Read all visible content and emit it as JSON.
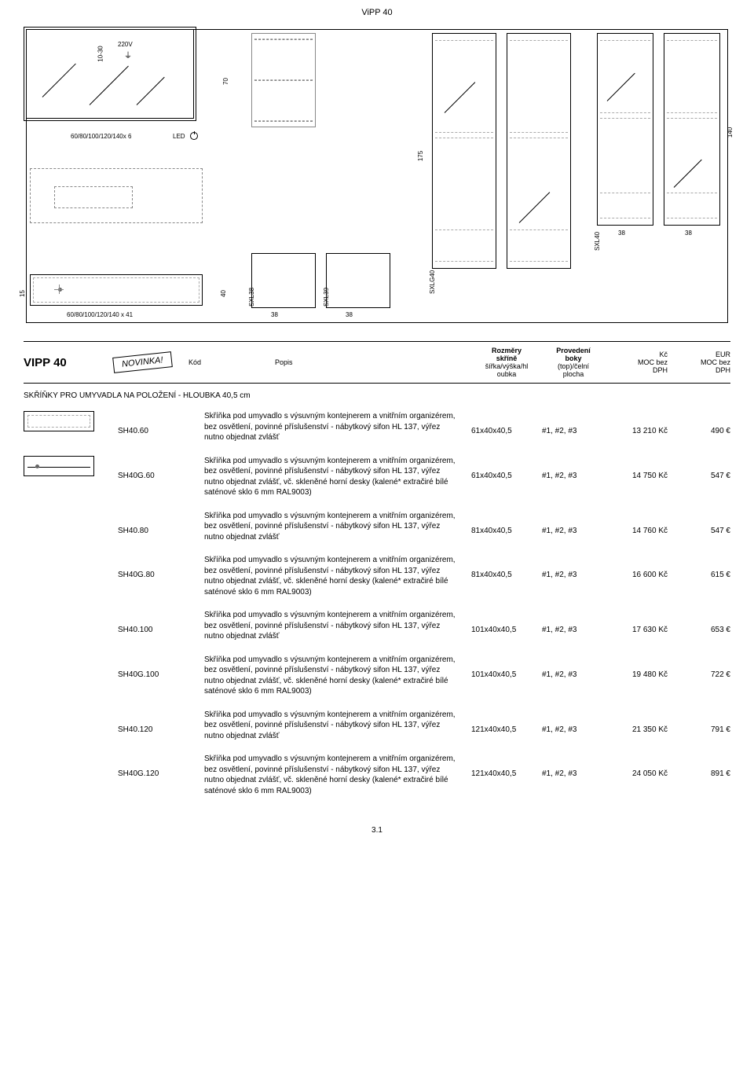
{
  "page_title": "ViPP 40",
  "page_number": "3.1",
  "diagrams": {
    "mirror": {
      "dim_height_range": "10-30",
      "voltage": "220V",
      "width_note": "60/80/100/120/140x 6",
      "led_label": "LED"
    },
    "side_panel": {
      "height_70": "70",
      "code_left": "SXL38",
      "code_right": "SXL39",
      "bottom_38_a": "38",
      "bottom_38_b": "38"
    },
    "tall_panels": {
      "height_175": "175",
      "height_140": "140",
      "code_g40": "SXLG40",
      "code_40": "SXL40",
      "bottom_38_a": "38",
      "bottom_38_b": "38"
    },
    "bottom_left": {
      "height_15": "15",
      "width_note": "60/80/100/120/140 x 41",
      "height_40": "40"
    }
  },
  "header": {
    "title": "VIPP 40",
    "badge": "NOVINKA!",
    "kod": "Kód",
    "popis": "Popis",
    "dim_l1": "Rozměry",
    "dim_l2": "skříně",
    "dim_l3": "šířka/výška/hl",
    "dim_l4": "oubka",
    "prov_l1": "Provedení",
    "prov_l2": "boky",
    "prov_l3": "(top)/čelní",
    "prov_l4": "plocha",
    "kc_l1": "Kč",
    "kc_l2": "MOC bez",
    "kc_l3": "DPH",
    "eur_l1": "EUR",
    "eur_l2": "MOC bez",
    "eur_l3": "DPH"
  },
  "section_title": "SKŘÍŇKY PRO UMYVADLA NA POLOŽENÍ - HLOUBKA 40,5 cm",
  "desc_short": "Skříňka pod umyvadlo s výsuvným kontejnerem a vnitřním organizérem, bez osvětlení, povinné příslušenství - nábytkový sifon HL 137, výřez nutno objednat zvlášť",
  "desc_long": "Skříňka pod umyvadlo s výsuvným kontejnerem a vnitřním organizérem, bez osvětlení, povinné příslušenství - nábytkový sifon HL 137, výřez nutno objednat zvlášť, vč. skleněné horní desky (kalené* extračiré bílé saténové sklo 6 mm RAL9003)",
  "rows": [
    {
      "kod": "SH40.60",
      "desc": "short",
      "dim": "61x40x40,5",
      "prov": "#1, #2, #3",
      "kc": "13 210 Kč",
      "eur": "490 €",
      "thumb": "dashed"
    },
    {
      "kod": "SH40G.60",
      "desc": "long",
      "dim": "61x40x40,5",
      "prov": "#1, #2, #3",
      "kc": "14 750 Kč",
      "eur": "547 €",
      "thumb": "line"
    },
    {
      "kod": "SH40.80",
      "desc": "short",
      "dim": "81x40x40,5",
      "prov": "#1, #2, #3",
      "kc": "14 760 Kč",
      "eur": "547 €",
      "thumb": ""
    },
    {
      "kod": "SH40G.80",
      "desc": "long",
      "dim": "81x40x40,5",
      "prov": "#1, #2, #3",
      "kc": "16 600 Kč",
      "eur": "615 €",
      "thumb": ""
    },
    {
      "kod": "SH40.100",
      "desc": "short",
      "dim": "101x40x40,5",
      "prov": "#1, #2, #3",
      "kc": "17 630 Kč",
      "eur": "653 €",
      "thumb": ""
    },
    {
      "kod": "SH40G.100",
      "desc": "long",
      "dim": "101x40x40,5",
      "prov": "#1, #2, #3",
      "kc": "19 480 Kč",
      "eur": "722 €",
      "thumb": ""
    },
    {
      "kod": "SH40.120",
      "desc": "short",
      "dim": "121x40x40,5",
      "prov": "#1, #2, #3",
      "kc": "21 350 Kč",
      "eur": "791 €",
      "thumb": ""
    },
    {
      "kod": "SH40G.120",
      "desc": "long",
      "dim": "121x40x40,5",
      "prov": "#1, #2, #3",
      "kc": "24 050 Kč",
      "eur": "891 €",
      "thumb": ""
    }
  ]
}
